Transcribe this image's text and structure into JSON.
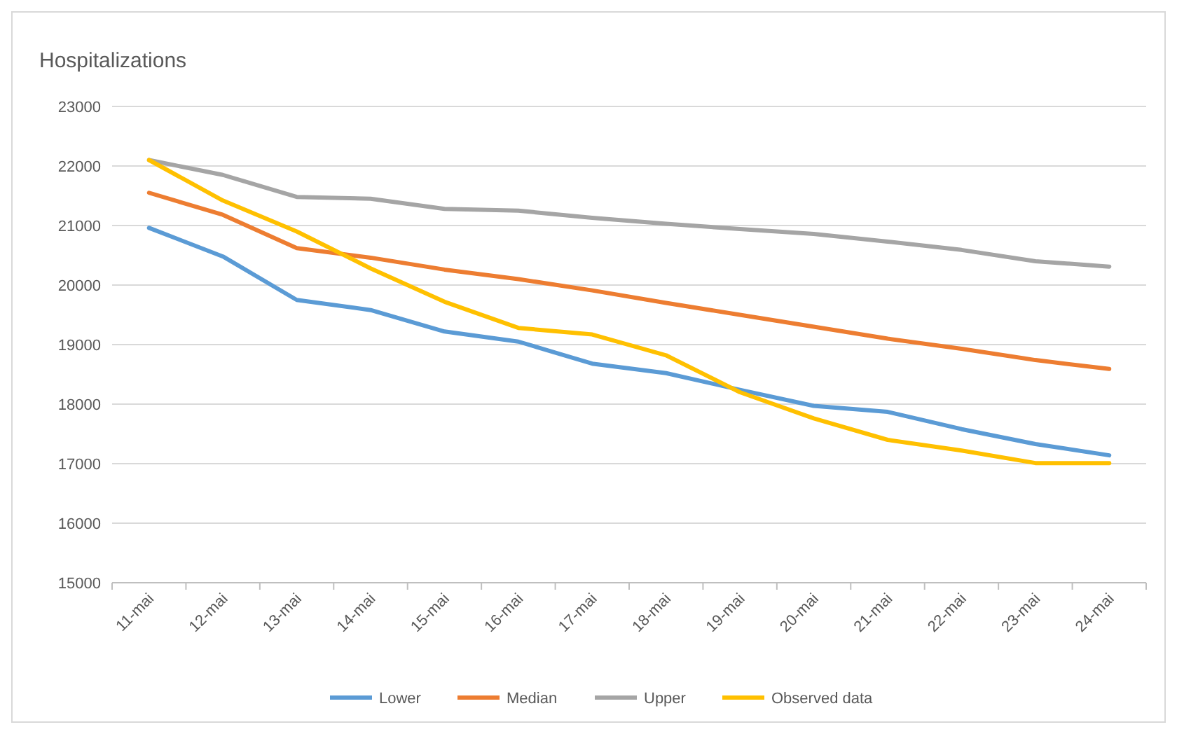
{
  "chart_data": {
    "type": "line",
    "title": "Hospitalizations",
    "categories": [
      "11-mai",
      "12-mai",
      "13-mai",
      "14-mai",
      "15-mai",
      "16-mai",
      "17-mai",
      "18-mai",
      "19-mai",
      "20-mai",
      "21-mai",
      "22-mai",
      "23-mai",
      "24-mai"
    ],
    "series": [
      {
        "name": "Lower",
        "color": "#5b9bd5",
        "values": [
          20960,
          20480,
          19750,
          19580,
          19220,
          19050,
          18680,
          18520,
          18240,
          17970,
          17870,
          17580,
          17330,
          17140
        ]
      },
      {
        "name": "Median",
        "color": "#ed7d31",
        "values": [
          21550,
          21180,
          20620,
          20460,
          20260,
          20100,
          19910,
          19700,
          19500,
          19300,
          19100,
          18930,
          18740,
          18590
        ]
      },
      {
        "name": "Upper",
        "color": "#a5a5a5",
        "values": [
          22100,
          21850,
          21480,
          21450,
          21280,
          21250,
          21130,
          21030,
          20940,
          20860,
          20730,
          20590,
          20400,
          20310
        ]
      },
      {
        "name": "Observed data",
        "color": "#ffc000",
        "values": [
          22100,
          21420,
          20900,
          20280,
          19720,
          19280,
          19170,
          18820,
          18200,
          17760,
          17400,
          17220,
          17010,
          17010
        ]
      }
    ],
    "ylim": [
      15000,
      23000
    ],
    "yticks": [
      15000,
      16000,
      17000,
      18000,
      19000,
      20000,
      21000,
      22000,
      23000
    ],
    "grid": "y",
    "legend": "bottom",
    "marker": "none",
    "line_style": "solid"
  }
}
